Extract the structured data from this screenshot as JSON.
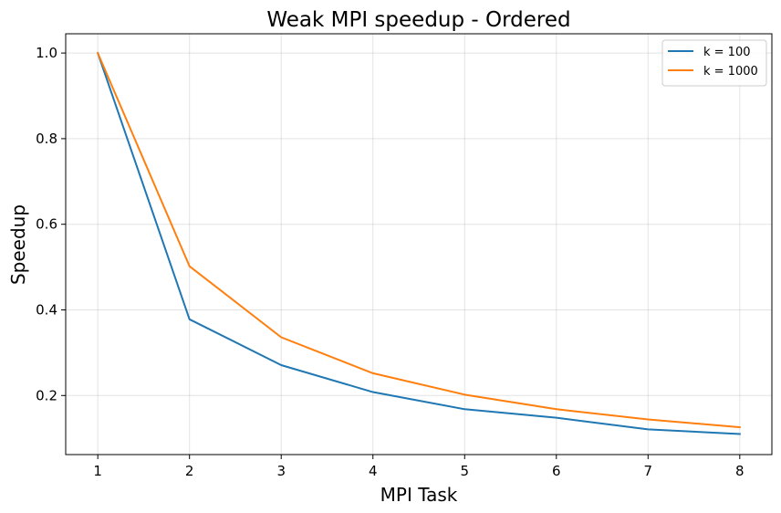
{
  "chart_data": {
    "type": "line",
    "title": "Weak MPI speedup - Ordered",
    "xlabel": "MPI Task",
    "ylabel": "Speedup",
    "x": [
      1,
      2,
      3,
      4,
      5,
      6,
      7,
      8
    ],
    "xticks": [
      "1",
      "2",
      "3",
      "4",
      "5",
      "6",
      "7",
      "8"
    ],
    "yticks": [
      "0.2",
      "0.4",
      "0.6",
      "0.8",
      "1.0"
    ],
    "xlim": [
      0.65,
      8.35
    ],
    "ylim": [
      0.062,
      1.045
    ],
    "grid": true,
    "legend_position": "top-right",
    "series": [
      {
        "name": "k = 100",
        "color": "#1f77b4",
        "values": [
          1.0,
          0.378,
          0.271,
          0.208,
          0.168,
          0.148,
          0.121,
          0.11
        ]
      },
      {
        "name": "k = 1000",
        "color": "#ff7f0e",
        "values": [
          1.0,
          0.502,
          0.336,
          0.252,
          0.202,
          0.168,
          0.144,
          0.126
        ]
      }
    ]
  }
}
